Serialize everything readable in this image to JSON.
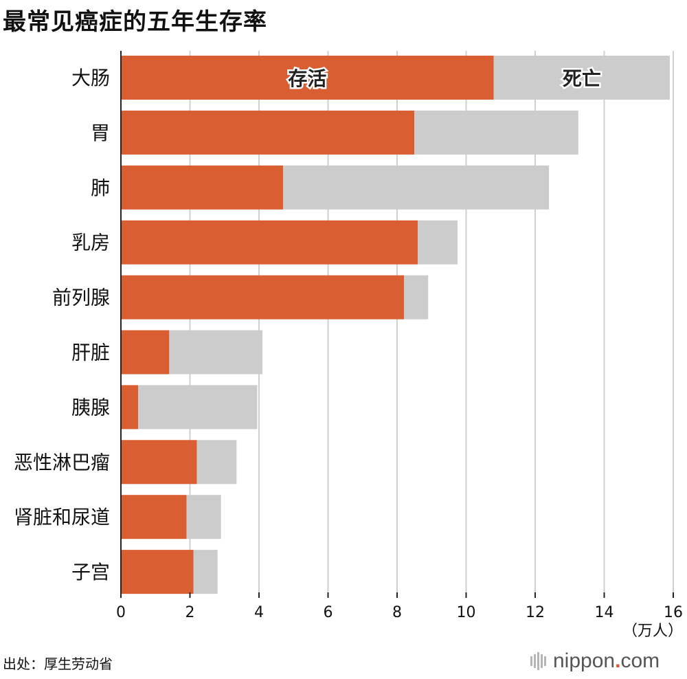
{
  "title": "最常见癌症的五年生存率",
  "source": "出处：厚生劳动省",
  "logo": {
    "name": "nippon",
    "dot": ".",
    "tld": "com"
  },
  "colors": {
    "survive": "#d95f33",
    "death": "#cccccc",
    "grid": "#cfcfcf",
    "axis": "#222222"
  },
  "chart_data": {
    "type": "bar",
    "orientation": "horizontal",
    "stacked": true,
    "categories": [
      "大肠",
      "胃",
      "肺",
      "乳房",
      "前列腺",
      "肝脏",
      "胰腺",
      "恶性淋巴瘤",
      "肾脏和尿道",
      "子宫"
    ],
    "series": [
      {
        "name": "存活",
        "values": [
          10.8,
          8.5,
          4.7,
          8.6,
          8.2,
          1.4,
          0.5,
          2.2,
          1.9,
          2.1
        ]
      },
      {
        "name": "死亡",
        "values": [
          5.1,
          4.75,
          7.7,
          1.15,
          0.7,
          2.7,
          3.45,
          1.15,
          1.0,
          0.7
        ]
      }
    ],
    "xlim": [
      0,
      16
    ],
    "xticks": [
      "0",
      "2",
      "4",
      "6",
      "8",
      "10",
      "12",
      "14",
      "16"
    ],
    "xunit": "（万人）",
    "grid": true
  }
}
